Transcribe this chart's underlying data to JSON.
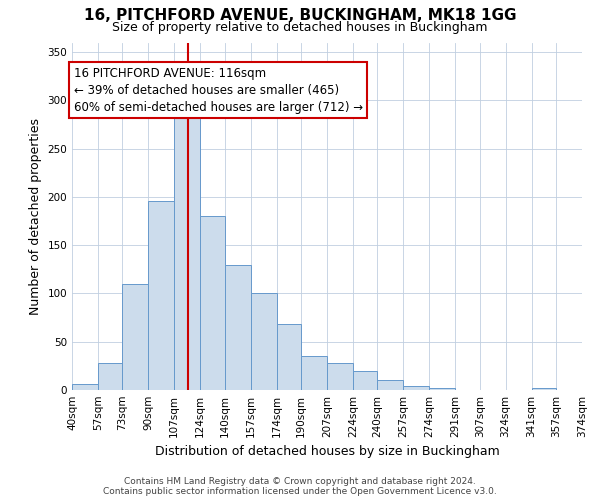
{
  "title": "16, PITCHFORD AVENUE, BUCKINGHAM, MK18 1GG",
  "subtitle": "Size of property relative to detached houses in Buckingham",
  "xlabel": "Distribution of detached houses by size in Buckingham",
  "ylabel": "Number of detached properties",
  "footer_line1": "Contains HM Land Registry data © Crown copyright and database right 2024.",
  "footer_line2": "Contains public sector information licensed under the Open Government Licence v3.0.",
  "bin_edges": [
    40,
    57,
    73,
    90,
    107,
    124,
    140,
    157,
    174,
    190,
    207,
    224,
    240,
    257,
    274,
    291,
    307,
    324,
    341,
    357,
    374
  ],
  "bin_labels": [
    "40sqm",
    "57sqm",
    "73sqm",
    "90sqm",
    "107sqm",
    "124sqm",
    "140sqm",
    "157sqm",
    "174sqm",
    "190sqm",
    "207sqm",
    "224sqm",
    "240sqm",
    "257sqm",
    "274sqm",
    "291sqm",
    "307sqm",
    "324sqm",
    "341sqm",
    "357sqm",
    "374sqm"
  ],
  "counts": [
    6,
    28,
    110,
    196,
    288,
    180,
    130,
    100,
    68,
    35,
    28,
    20,
    10,
    4,
    2,
    0,
    0,
    0,
    2,
    0
  ],
  "bar_color": "#ccdcec",
  "bar_edge_color": "#6699cc",
  "vline_x": 116,
  "vline_color": "#cc0000",
  "annotation_text": "16 PITCHFORD AVENUE: 116sqm\n← 39% of detached houses are smaller (465)\n60% of semi-detached houses are larger (712) →",
  "annotation_box_color": "#ffffff",
  "annotation_box_edge_color": "#cc0000",
  "ylim": [
    0,
    360
  ],
  "bg_color": "#ffffff",
  "grid_color": "#c0cfe0",
  "title_fontsize": 11,
  "subtitle_fontsize": 9,
  "axis_label_fontsize": 9,
  "tick_fontsize": 7.5,
  "annotation_fontsize": 8.5,
  "footer_fontsize": 6.5
}
